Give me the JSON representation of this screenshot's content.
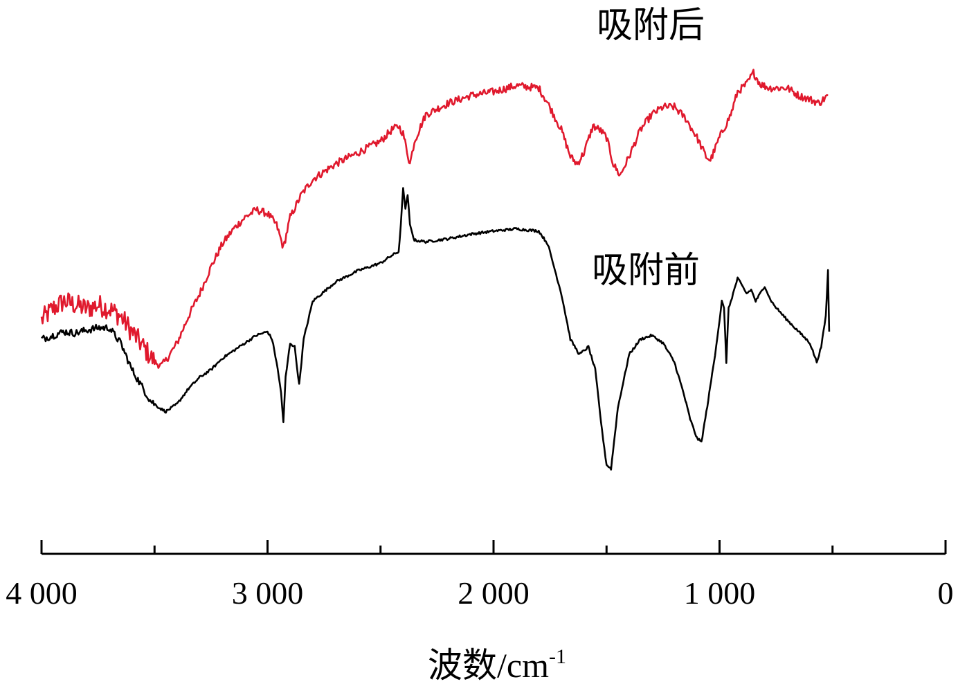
{
  "chart_data": {
    "type": "line",
    "title": "",
    "xlabel": "波数/cm",
    "xlabel_sup": "-1",
    "ylabel": "",
    "xlim": [
      4000,
      0
    ],
    "x_reversed": true,
    "x_ticks": [
      4000,
      3000,
      2000,
      1000,
      0
    ],
    "x_tick_labels": [
      "4 000",
      "3 000",
      "2 000",
      "1 000",
      "0"
    ],
    "x_minor_ticks": [
      3500,
      2500,
      1500,
      500
    ],
    "y_axis_shown": false,
    "grid": false,
    "legend": "none",
    "series": [
      {
        "name": "吸附后",
        "color": "#e0192d",
        "noise": 0.18,
        "points": [
          [
            4000,
            1.25
          ],
          [
            3950,
            1.4
          ],
          [
            3900,
            1.5
          ],
          [
            3850,
            1.45
          ],
          [
            3800,
            1.4
          ],
          [
            3750,
            1.45
          ],
          [
            3700,
            1.4
          ],
          [
            3650,
            1.3
          ],
          [
            3600,
            1.1
          ],
          [
            3550,
            0.9
          ],
          [
            3500,
            0.7
          ],
          [
            3470,
            0.65
          ],
          [
            3450,
            0.72
          ],
          [
            3400,
            0.95
          ],
          [
            3350,
            1.3
          ],
          [
            3300,
            1.6
          ],
          [
            3250,
            1.95
          ],
          [
            3200,
            2.25
          ],
          [
            3150,
            2.45
          ],
          [
            3100,
            2.6
          ],
          [
            3050,
            2.7
          ],
          [
            3000,
            2.65
          ],
          [
            2960,
            2.5
          ],
          [
            2930,
            2.2
          ],
          [
            2900,
            2.6
          ],
          [
            2850,
            2.9
          ],
          [
            2800,
            3.1
          ],
          [
            2700,
            3.3
          ],
          [
            2600,
            3.45
          ],
          [
            2500,
            3.6
          ],
          [
            2450,
            3.75
          ],
          [
            2420,
            3.8
          ],
          [
            2400,
            3.7
          ],
          [
            2370,
            3.3
          ],
          [
            2350,
            3.6
          ],
          [
            2300,
            3.95
          ],
          [
            2200,
            4.1
          ],
          [
            2100,
            4.2
          ],
          [
            2000,
            4.25
          ],
          [
            1900,
            4.33
          ],
          [
            1800,
            4.3
          ],
          [
            1760,
            4.1
          ],
          [
            1700,
            3.75
          ],
          [
            1660,
            3.4
          ],
          [
            1630,
            3.3
          ],
          [
            1600,
            3.45
          ],
          [
            1560,
            3.8
          ],
          [
            1530,
            3.75
          ],
          [
            1500,
            3.65
          ],
          [
            1470,
            3.3
          ],
          [
            1440,
            3.15
          ],
          [
            1400,
            3.4
          ],
          [
            1350,
            3.75
          ],
          [
            1300,
            3.95
          ],
          [
            1250,
            4.05
          ],
          [
            1200,
            4.05
          ],
          [
            1150,
            3.9
          ],
          [
            1100,
            3.65
          ],
          [
            1060,
            3.4
          ],
          [
            1040,
            3.35
          ],
          [
            1000,
            3.65
          ],
          [
            950,
            3.95
          ],
          [
            920,
            4.25
          ],
          [
            880,
            4.35
          ],
          [
            850,
            4.5
          ],
          [
            820,
            4.35
          ],
          [
            780,
            4.3
          ],
          [
            700,
            4.3
          ],
          [
            650,
            4.2
          ],
          [
            600,
            4.15
          ],
          [
            560,
            4.1
          ],
          [
            520,
            4.2
          ]
        ]
      },
      {
        "name": "吸附前",
        "color": "#000000",
        "noise": 0.06,
        "points": [
          [
            4000,
            1.0
          ],
          [
            3950,
            1.05
          ],
          [
            3900,
            1.1
          ],
          [
            3850,
            1.08
          ],
          [
            3800,
            1.12
          ],
          [
            3750,
            1.15
          ],
          [
            3700,
            1.15
          ],
          [
            3650,
            0.95
          ],
          [
            3600,
            0.6
          ],
          [
            3560,
            0.4
          ],
          [
            3520,
            0.2
          ],
          [
            3480,
            0.1
          ],
          [
            3450,
            0.05
          ],
          [
            3400,
            0.15
          ],
          [
            3350,
            0.35
          ],
          [
            3300,
            0.5
          ],
          [
            3250,
            0.6
          ],
          [
            3200,
            0.75
          ],
          [
            3150,
            0.85
          ],
          [
            3100,
            0.95
          ],
          [
            3050,
            1.05
          ],
          [
            3000,
            1.1
          ],
          [
            2980,
            1.0
          ],
          [
            2960,
            0.7
          ],
          [
            2940,
            0.3
          ],
          [
            2930,
            -0.1
          ],
          [
            2920,
            0.5
          ],
          [
            2900,
            0.95
          ],
          [
            2880,
            0.9
          ],
          [
            2860,
            0.4
          ],
          [
            2840,
            1.0
          ],
          [
            2800,
            1.5
          ],
          [
            2700,
            1.75
          ],
          [
            2600,
            1.9
          ],
          [
            2500,
            2.0
          ],
          [
            2450,
            2.1
          ],
          [
            2420,
            2.15
          ],
          [
            2410,
            2.5
          ],
          [
            2400,
            3.0
          ],
          [
            2390,
            2.7
          ],
          [
            2380,
            2.9
          ],
          [
            2370,
            2.5
          ],
          [
            2350,
            2.3
          ],
          [
            2300,
            2.28
          ],
          [
            2200,
            2.32
          ],
          [
            2100,
            2.38
          ],
          [
            2000,
            2.42
          ],
          [
            1900,
            2.45
          ],
          [
            1800,
            2.42
          ],
          [
            1760,
            2.25
          ],
          [
            1700,
            1.6
          ],
          [
            1660,
            1.0
          ],
          [
            1620,
            0.8
          ],
          [
            1580,
            0.9
          ],
          [
            1550,
            0.6
          ],
          [
            1520,
            -0.2
          ],
          [
            1500,
            -0.65
          ],
          [
            1480,
            -0.7
          ],
          [
            1450,
            0.1
          ],
          [
            1400,
            0.8
          ],
          [
            1350,
            1.0
          ],
          [
            1300,
            1.05
          ],
          [
            1250,
            0.95
          ],
          [
            1200,
            0.7
          ],
          [
            1160,
            0.3
          ],
          [
            1130,
            -0.05
          ],
          [
            1100,
            -0.3
          ],
          [
            1080,
            -0.35
          ],
          [
            1050,
            0.2
          ],
          [
            1020,
            0.8
          ],
          [
            1000,
            1.25
          ],
          [
            990,
            1.5
          ],
          [
            980,
            1.4
          ],
          [
            970,
            0.7
          ],
          [
            960,
            1.4
          ],
          [
            940,
            1.6
          ],
          [
            920,
            1.8
          ],
          [
            900,
            1.7
          ],
          [
            880,
            1.6
          ],
          [
            860,
            1.65
          ],
          [
            840,
            1.5
          ],
          [
            800,
            1.7
          ],
          [
            780,
            1.55
          ],
          [
            760,
            1.45
          ],
          [
            700,
            1.25
          ],
          [
            650,
            1.1
          ],
          [
            600,
            0.95
          ],
          [
            570,
            0.7
          ],
          [
            550,
            0.9
          ],
          [
            530,
            1.3
          ],
          [
            520,
            1.9
          ],
          [
            515,
            1.1
          ]
        ]
      }
    ],
    "annotations": [
      {
        "text": "吸附后",
        "series": "吸附后"
      },
      {
        "text": "吸附前",
        "series": "吸附前"
      }
    ]
  }
}
